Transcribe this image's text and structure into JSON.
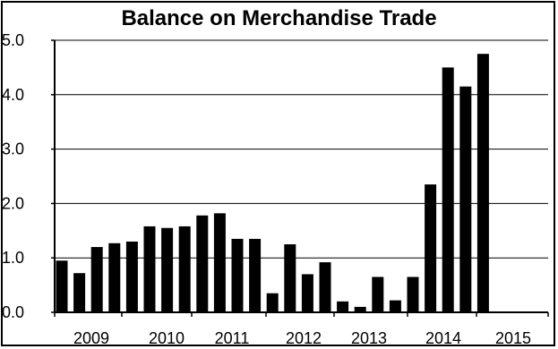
{
  "chart_data": {
    "type": "bar",
    "title": "Balance on Merchandise Trade",
    "xlabel": "",
    "ylabel": "",
    "ylim": [
      0,
      5.0
    ],
    "yticks": [
      0.0,
      1.0,
      2.0,
      3.0,
      4.0,
      5.0
    ],
    "ytick_labels": [
      "0.0",
      "1.0",
      "2.0",
      "3.0",
      "4.0",
      "5.0"
    ],
    "year_labels": [
      "2009",
      "2010",
      "2011",
      "2012",
      "2013",
      "2014",
      "2015"
    ],
    "grid": "horizontal",
    "legend": "none",
    "bar_color": "#000000",
    "series": [
      {
        "values": [
          0.95,
          0.72,
          1.2,
          1.27,
          1.3,
          1.58,
          1.55,
          1.58,
          1.78,
          1.82,
          1.35,
          1.35,
          0.35,
          1.25,
          0.7,
          0.92,
          0.2,
          0.1,
          0.65,
          0.22,
          0.65,
          2.35,
          4.5,
          4.15,
          4.75
        ]
      }
    ]
  }
}
